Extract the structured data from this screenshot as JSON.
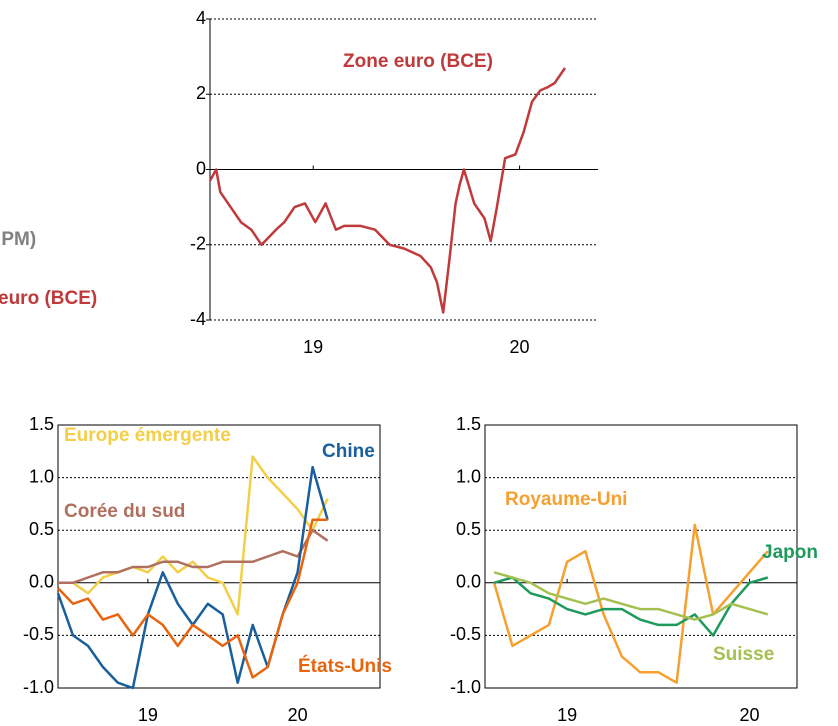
{
  "chart_data": [
    {
      "type": "line",
      "box": false,
      "annotations": [
        {
          "text": "euro (JPM)",
          "color": "#808080"
        },
        {
          "text": "euro (BCE)",
          "color": "#c0393b"
        }
      ],
      "xlim": [
        18.5,
        20.38
      ],
      "xticks": [
        19,
        20
      ],
      "ylim": [
        -4,
        4
      ],
      "yticks": [
        -4,
        -2,
        0,
        2,
        4
      ],
      "series": [
        {
          "name": "Zone euro (BCE)",
          "color": "#c0393b",
          "x": [
            18.5,
            18.53,
            18.55,
            18.6,
            18.65,
            18.7,
            18.75,
            18.82,
            18.86,
            18.91,
            18.96,
            19.01,
            19.06,
            19.11,
            19.15,
            19.23,
            19.3,
            19.37,
            19.44,
            19.52,
            19.57,
            19.6,
            19.63,
            19.66,
            19.69,
            19.71,
            19.73,
            19.78,
            19.83,
            19.86,
            19.89,
            19.93,
            19.98,
            20.02,
            20.06,
            20.1,
            20.14,
            20.17,
            20.22
          ],
          "values": [
            -0.3,
            0.0,
            -0.6,
            -1.0,
            -1.4,
            -1.6,
            -2.0,
            -1.6,
            -1.4,
            -1.0,
            -0.9,
            -1.4,
            -0.9,
            -1.6,
            -1.5,
            -1.5,
            -1.6,
            -2.0,
            -2.1,
            -2.3,
            -2.6,
            -3.0,
            -3.8,
            -2.4,
            -0.9,
            -0.4,
            0.0,
            -0.9,
            -1.3,
            -1.9,
            -1.0,
            0.3,
            0.4,
            1.0,
            1.8,
            2.1,
            2.2,
            2.3,
            2.7
          ]
        }
      ]
    },
    {
      "type": "line",
      "box": true,
      "xlim": [
        18.4,
        20.55
      ],
      "xticks": [
        19,
        20
      ],
      "ylim": [
        -1,
        1.5
      ],
      "yticks": [
        {
          "value": -1,
          "label": "-1.0"
        },
        -0.5,
        {
          "value": 0,
          "label": "0.0"
        },
        0.5,
        {
          "value": 1,
          "label": "1.0"
        },
        1.5
      ],
      "series": [
        {
          "name": "Europe émergente",
          "color": "#f3cf48",
          "x": [
            18.4,
            18.5,
            18.6,
            18.7,
            18.8,
            18.9,
            19.0,
            19.1,
            19.2,
            19.3,
            19.4,
            19.5,
            19.6,
            19.7,
            19.8,
            19.9,
            20.0,
            20.1,
            20.2
          ],
          "values": [
            0.0,
            0.0,
            -0.1,
            0.05,
            0.1,
            0.15,
            0.1,
            0.25,
            0.1,
            0.2,
            0.05,
            0.0,
            -0.3,
            1.2,
            1.0,
            0.85,
            0.7,
            0.5,
            0.8
          ]
        },
        {
          "name": "Corée du sud",
          "color": "#b07060",
          "x": [
            18.4,
            18.5,
            18.6,
            18.7,
            18.8,
            18.9,
            19.0,
            19.1,
            19.2,
            19.3,
            19.4,
            19.5,
            19.6,
            19.7,
            19.8,
            19.9,
            20.0,
            20.1,
            20.2
          ],
          "values": [
            0.0,
            0.0,
            0.05,
            0.1,
            0.1,
            0.15,
            0.15,
            0.2,
            0.2,
            0.15,
            0.15,
            0.2,
            0.2,
            0.2,
            0.25,
            0.3,
            0.25,
            0.5,
            0.4
          ]
        },
        {
          "name": "Chine",
          "color": "#1a5f9c",
          "x": [
            18.4,
            18.5,
            18.6,
            18.7,
            18.8,
            18.9,
            19.0,
            19.1,
            19.2,
            19.3,
            19.4,
            19.5,
            19.6,
            19.7,
            19.8,
            19.9,
            20.0,
            20.1,
            20.2
          ],
          "values": [
            -0.1,
            -0.5,
            -0.6,
            -0.8,
            -0.95,
            -1.0,
            -0.3,
            0.1,
            -0.2,
            -0.4,
            -0.2,
            -0.3,
            -0.95,
            -0.4,
            -0.8,
            -0.3,
            0.1,
            1.1,
            0.6
          ]
        },
        {
          "name": "États-Unis",
          "color": "#e8650f",
          "x": [
            18.4,
            18.5,
            18.6,
            18.7,
            18.8,
            18.9,
            19.0,
            19.1,
            19.2,
            19.3,
            19.4,
            19.5,
            19.6,
            19.7,
            19.8,
            19.9,
            20.0,
            20.1,
            20.2
          ],
          "values": [
            -0.05,
            -0.2,
            -0.15,
            -0.35,
            -0.3,
            -0.5,
            -0.3,
            -0.4,
            -0.6,
            -0.4,
            -0.5,
            -0.6,
            -0.5,
            -0.9,
            -0.8,
            -0.3,
            0.0,
            0.6,
            0.6
          ]
        }
      ]
    },
    {
      "type": "line",
      "box": true,
      "xlim": [
        18.55,
        20.26
      ],
      "xticks": [
        19,
        20
      ],
      "ylim": [
        -1,
        1.5
      ],
      "yticks": [
        {
          "value": -1,
          "label": "-1.0"
        },
        -0.5,
        {
          "value": 0,
          "label": "0.0"
        },
        0.5,
        {
          "value": 1,
          "label": "1.0"
        },
        1.5
      ],
      "series": [
        {
          "name": "Royaume-Uni",
          "color": "#f5a030",
          "x": [
            18.6,
            18.7,
            18.8,
            18.9,
            19.0,
            19.1,
            19.2,
            19.3,
            19.4,
            19.5,
            19.6,
            19.7,
            19.8,
            19.9,
            20.0,
            20.1
          ],
          "values": [
            0.0,
            -0.6,
            -0.5,
            -0.4,
            0.2,
            0.3,
            -0.3,
            -0.7,
            -0.85,
            -0.85,
            -0.95,
            0.55,
            -0.3,
            -0.1,
            0.1,
            0.3
          ]
        },
        {
          "name": "Japon",
          "color": "#1e9a5c",
          "x": [
            18.6,
            18.7,
            18.8,
            18.9,
            19.0,
            19.1,
            19.2,
            19.3,
            19.4,
            19.5,
            19.6,
            19.7,
            19.8,
            19.9,
            20.0,
            20.1
          ],
          "values": [
            0.0,
            0.05,
            -0.1,
            -0.15,
            -0.25,
            -0.3,
            -0.25,
            -0.25,
            -0.35,
            -0.4,
            -0.4,
            -0.3,
            -0.5,
            -0.2,
            0.0,
            0.05
          ]
        },
        {
          "name": "Suisse",
          "color": "#a6c050",
          "x": [
            18.6,
            18.7,
            18.8,
            18.9,
            19.0,
            19.1,
            19.2,
            19.3,
            19.4,
            19.5,
            19.6,
            19.7,
            19.8,
            19.9,
            20.0,
            20.1
          ],
          "values": [
            0.1,
            0.05,
            0.0,
            -0.1,
            -0.15,
            -0.2,
            -0.15,
            -0.2,
            -0.25,
            -0.25,
            -0.3,
            -0.35,
            -0.3,
            -0.2,
            -0.25,
            -0.3
          ]
        }
      ]
    }
  ]
}
